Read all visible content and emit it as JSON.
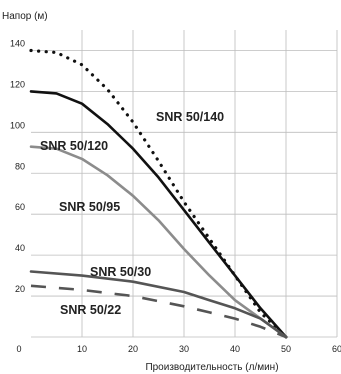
{
  "chart_data": {
    "type": "line",
    "ylabel": "Напор (м)",
    "xlabel": "Производительность (л/мин)",
    "x_ticks": [
      "0",
      "10",
      "20",
      "30",
      "40",
      "50",
      "60"
    ],
    "y_ticks": [
      "20",
      "40",
      "60",
      "80",
      "100",
      "120",
      "140"
    ],
    "xlim": [
      0,
      60
    ],
    "ylim": [
      0,
      150
    ],
    "grid": true,
    "series": [
      {
        "name": "SNR 50/140",
        "color": "#111111",
        "style": "dotted",
        "points": [
          [
            0,
            140
          ],
          [
            5,
            139
          ],
          [
            10,
            133
          ],
          [
            15,
            121
          ],
          [
            20,
            105
          ],
          [
            25,
            86
          ],
          [
            30,
            66
          ],
          [
            35,
            48
          ],
          [
            40,
            30
          ],
          [
            45,
            12
          ],
          [
            50,
            0
          ]
        ]
      },
      {
        "name": "SNR 50/120",
        "color": "#111111",
        "style": "solid",
        "points": [
          [
            0,
            120
          ],
          [
            5,
            119
          ],
          [
            10,
            114
          ],
          [
            15,
            104
          ],
          [
            20,
            92
          ],
          [
            25,
            78
          ],
          [
            30,
            62
          ],
          [
            35,
            46
          ],
          [
            40,
            30
          ],
          [
            45,
            14
          ],
          [
            50,
            0
          ]
        ]
      },
      {
        "name": "SNR 50/95",
        "color": "#8c8c8c",
        "style": "solid",
        "points": [
          [
            0,
            93
          ],
          [
            5,
            92
          ],
          [
            10,
            87
          ],
          [
            15,
            79
          ],
          [
            20,
            69
          ],
          [
            25,
            57
          ],
          [
            30,
            43
          ],
          [
            35,
            30
          ],
          [
            40,
            18
          ],
          [
            45,
            9
          ],
          [
            50,
            0
          ]
        ]
      },
      {
        "name": "SNR 50/30",
        "color": "#555555",
        "style": "solid",
        "points": [
          [
            0,
            32
          ],
          [
            10,
            30
          ],
          [
            20,
            27
          ],
          [
            30,
            22
          ],
          [
            35,
            18
          ],
          [
            40,
            14
          ],
          [
            45,
            9
          ],
          [
            50,
            0
          ]
        ]
      },
      {
        "name": "SNR 50/22",
        "color": "#555555",
        "style": "dashed",
        "points": [
          [
            0,
            25
          ],
          [
            10,
            23
          ],
          [
            20,
            20
          ],
          [
            30,
            15
          ],
          [
            35,
            12
          ],
          [
            40,
            9
          ],
          [
            45,
            5
          ],
          [
            50,
            0
          ]
        ]
      }
    ]
  }
}
